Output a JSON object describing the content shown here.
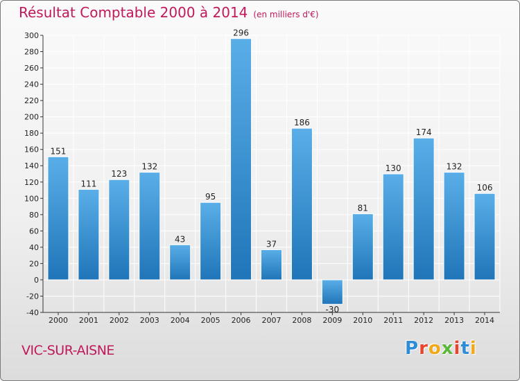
{
  "title": "Résultat Comptable 2000 à 2014",
  "subtitle": "(en milliers d'€)",
  "place": "VIC-SUR-AISNE",
  "logo": {
    "text": "Proxiti",
    "letter_colors": [
      "#2e8bd6",
      "#e8452c",
      "#f0a81c",
      "#5cb83c",
      "#e8452c",
      "#2e8bd6",
      "#f0a81c"
    ]
  },
  "colors": {
    "title": "#c0185a",
    "bar_light": "#5aaee8",
    "bar_dark": "#1f75b8",
    "grid": "#ffffff",
    "axis": "#333333"
  },
  "chart_data": {
    "type": "bar",
    "title": "Résultat Comptable 2000 à 2014",
    "ylabel": "en milliers d'€",
    "xlabel": "",
    "categories": [
      "2000",
      "2001",
      "2002",
      "2003",
      "2004",
      "2005",
      "2006",
      "2007",
      "2008",
      "2009",
      "2010",
      "2011",
      "2012",
      "2013",
      "2014"
    ],
    "values": [
      151,
      111,
      123,
      132,
      43,
      95,
      296,
      37,
      186,
      -30,
      81,
      130,
      174,
      132,
      106
    ],
    "ylim": [
      -40,
      300
    ],
    "ytick_step": 20,
    "grid": true,
    "legend": "none"
  }
}
